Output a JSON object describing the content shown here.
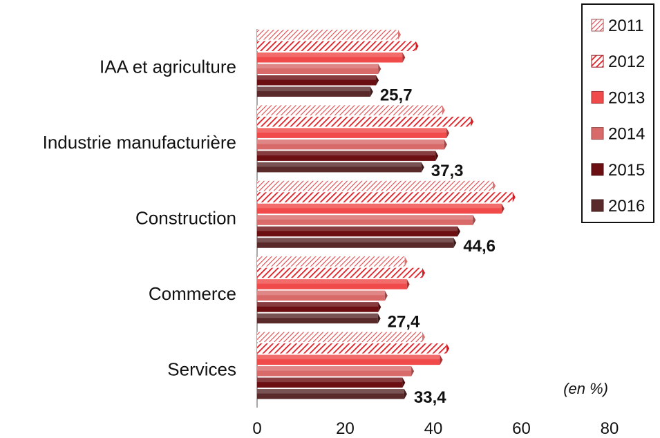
{
  "chart_data": {
    "type": "bar",
    "orientation": "horizontal",
    "categories": [
      "IAA et agriculture",
      "Industrie manufacturière",
      "Construction",
      "Commerce",
      "Services"
    ],
    "series": [
      {
        "name": "2011",
        "values": [
          32.0,
          42.0,
          53.5,
          33.5,
          37.5
        ]
      },
      {
        "name": "2012",
        "values": [
          36.0,
          48.5,
          58.0,
          37.5,
          43.0
        ]
      },
      {
        "name": "2013",
        "values": [
          33.0,
          43.0,
          55.5,
          34.0,
          41.5
        ]
      },
      {
        "name": "2014",
        "values": [
          27.5,
          42.5,
          49.0,
          29.0,
          35.0
        ]
      },
      {
        "name": "2015",
        "values": [
          27.0,
          40.5,
          45.5,
          27.5,
          33.0
        ]
      },
      {
        "name": "2016",
        "values": [
          25.7,
          37.3,
          44.6,
          27.4,
          33.4
        ]
      }
    ],
    "data_labels": [
      "25,7",
      "37,3",
      "44,6",
      "27,4",
      "33,4"
    ],
    "unit_note": "(en %)",
    "xlim": [
      0,
      80
    ],
    "xticks": [
      "0",
      "20",
      "40",
      "60",
      "80"
    ],
    "grid": false,
    "legend_position": "top-right",
    "colors": {
      "2011": "#f08080",
      "2012": "#e8202a",
      "2013": "#f04a4a",
      "2014": "#d86a6a",
      "2015": "#6b0f12",
      "2016": "#5a2a2a"
    },
    "patterns": {
      "2011": "hatch-light",
      "2012": "hatch",
      "2013": "solid",
      "2014": "solid",
      "2015": "solid",
      "2016": "solid"
    }
  }
}
